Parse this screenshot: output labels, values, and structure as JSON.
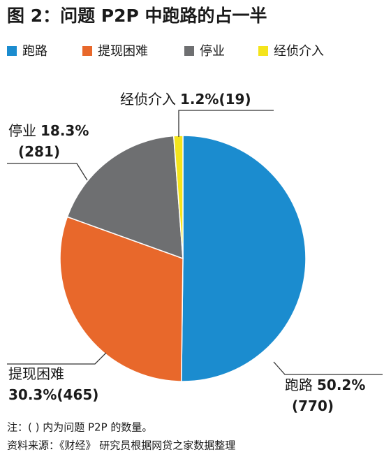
{
  "chart_data": {
    "type": "pie",
    "title": "图 2：问题 P2P 中跑路的占一半",
    "categories": [
      "跑路",
      "提现困难",
      "停业",
      "经侦介入"
    ],
    "values": [
      50.2,
      30.3,
      18.3,
      1.2
    ],
    "value_labels": [
      "50.2%",
      "30.3%",
      "18.3%",
      "1.2%"
    ],
    "count_labels": [
      "(770)",
      "(465)",
      "(281)",
      "(19)"
    ],
    "colors": [
      "#1b8ccf",
      "#e8682b",
      "#6e6f71",
      "#f4e41c"
    ],
    "legend": "top-left",
    "notes": [
      "注：( ) 内为问题 P2P 的数量。",
      "资料来源：《财经》 研究员根据网贷之家数据整理"
    ]
  }
}
